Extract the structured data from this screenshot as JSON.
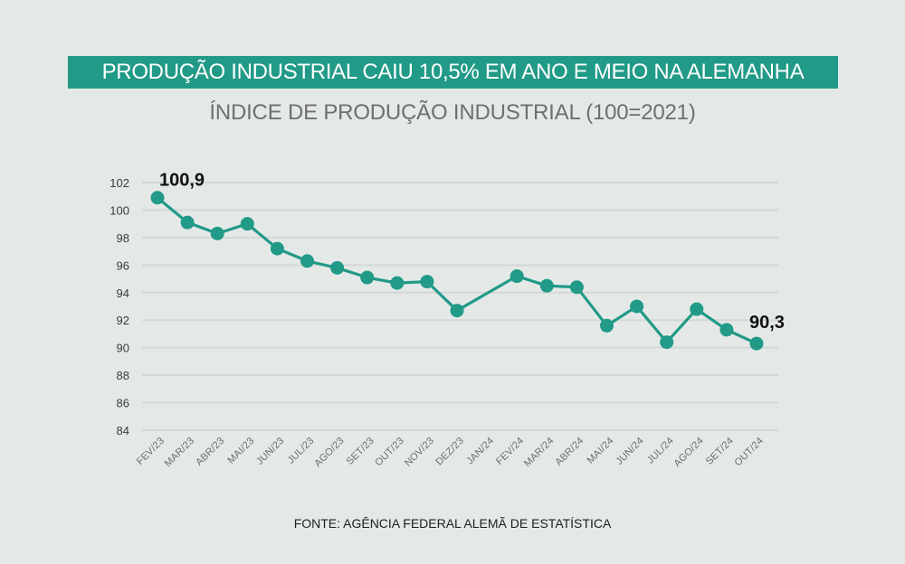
{
  "header": {
    "title": "PRODUÇÃO INDUSTRIAL CAIU 10,5% EM ANO E MEIO NA ALEMANHA",
    "subtitle": "ÍNDICE DE PRODUÇÃO INDUSTRIAL (100=2021)"
  },
  "footer": {
    "source": "FONTE: AGÊNCIA FEDERAL ALEMÃ DE ESTATÍSTICA"
  },
  "colors": {
    "background": "#e4e9e8",
    "accent": "#219a87",
    "grid": "#d3d8d7"
  },
  "chart_data": {
    "type": "line",
    "title": "PRODUÇÃO INDUSTRIAL CAIU 10,5% EM ANO E MEIO NA ALEMANHA",
    "subtitle": "ÍNDICE DE PRODUÇÃO INDUSTRIAL (100=2021)",
    "xlabel": "",
    "ylabel": "",
    "ylim": [
      84,
      102
    ],
    "yticks": [
      84,
      86,
      88,
      90,
      92,
      94,
      96,
      98,
      100,
      102
    ],
    "grid": true,
    "legend": "none",
    "categories": [
      "FEV/23",
      "MAR/23",
      "ABR/23",
      "MAI/23",
      "JUN/23",
      "JUL/23",
      "AGO/23",
      "SET/23",
      "OUT/23",
      "NOV/23",
      "DEZ/23",
      "JAN/24",
      "FEV/24",
      "MAR/24",
      "ABR/24",
      "MAI/24",
      "JUN/24",
      "JUL/24",
      "AGO/24",
      "SET/24",
      "OUT/24"
    ],
    "series": [
      {
        "name": "Índice de produção industrial",
        "values": [
          100.9,
          99.1,
          98.3,
          99.0,
          97.2,
          96.3,
          95.8,
          95.1,
          94.7,
          94.8,
          92.7,
          null,
          95.2,
          94.5,
          94.4,
          91.6,
          93.0,
          90.4,
          92.8,
          91.3,
          90.3
        ]
      }
    ],
    "annotations": [
      {
        "category": "FEV/23",
        "text": "100,9"
      },
      {
        "category": "OUT/24",
        "text": "90,3"
      }
    ],
    "source": "FONTE: AGÊNCIA FEDERAL ALEMÃ DE ESTATÍSTICA"
  }
}
